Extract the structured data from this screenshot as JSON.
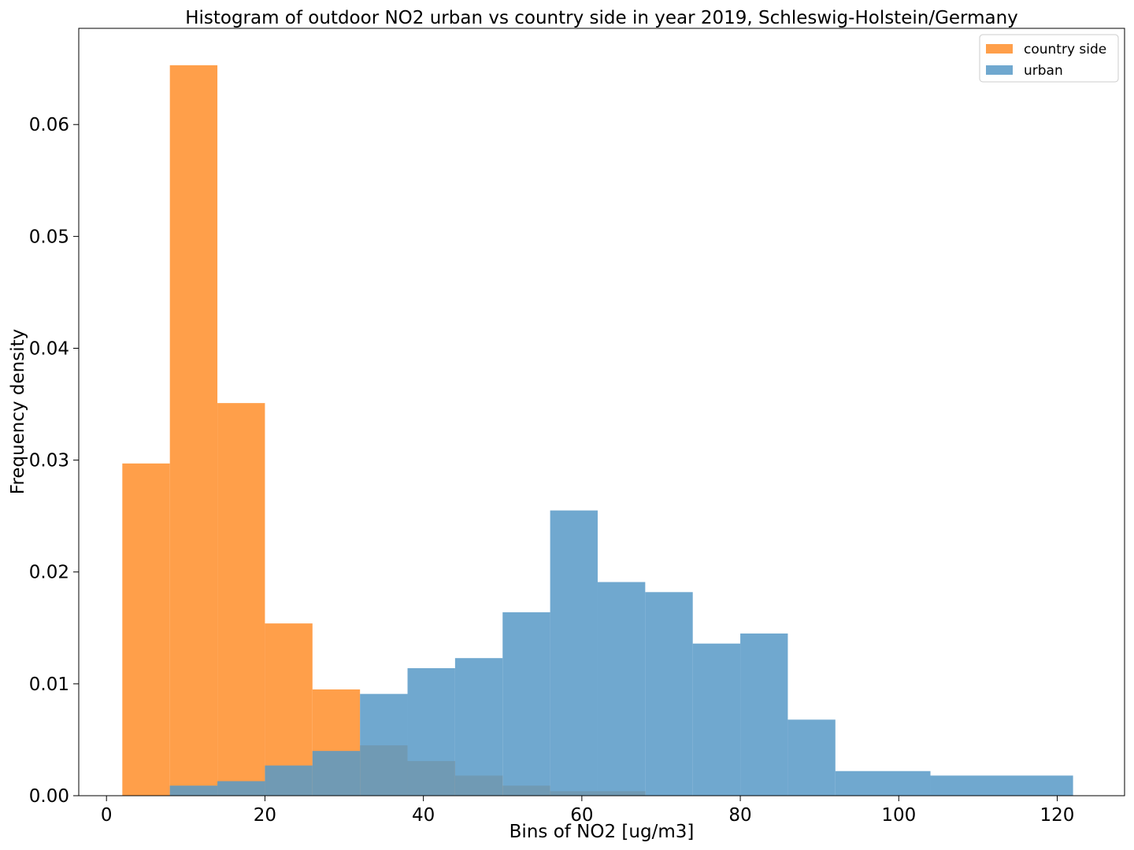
{
  "chart_data": {
    "type": "histogram",
    "title": "Histogram of outdoor NO2 urban vs country side in year 2019, Schleswig-Holstein/Germany",
    "xlabel": "Bins of NO2 [ug/m3]",
    "ylabel": "Frequency density",
    "xlim": [
      -3.5,
      128.5
    ],
    "ylim": [
      0,
      0.0686
    ],
    "xticks": [
      0,
      20,
      40,
      60,
      80,
      100,
      120
    ],
    "yticks": [
      0.0,
      0.01,
      0.02,
      0.03,
      0.04,
      0.05,
      0.06
    ],
    "ytick_labels": [
      "0.00",
      "0.01",
      "0.02",
      "0.03",
      "0.04",
      "0.05",
      "0.06"
    ],
    "grid": false,
    "legend_position": "top-right",
    "series": [
      {
        "name": "country side",
        "color": "#ff9f4a",
        "bins": [
          {
            "x0": 2,
            "x1": 8,
            "density": 0.0297
          },
          {
            "x0": 8,
            "x1": 14,
            "density": 0.0653
          },
          {
            "x0": 14,
            "x1": 20,
            "density": 0.0351
          },
          {
            "x0": 20,
            "x1": 26,
            "density": 0.0154
          },
          {
            "x0": 26,
            "x1": 32,
            "density": 0.0095
          },
          {
            "x0": 32,
            "x1": 38,
            "density": 0.0045
          },
          {
            "x0": 38,
            "x1": 44,
            "density": 0.0031
          },
          {
            "x0": 44,
            "x1": 50,
            "density": 0.0018
          },
          {
            "x0": 50,
            "x1": 56,
            "density": 0.0009
          },
          {
            "x0": 56,
            "x1": 62,
            "density": 0.0004
          },
          {
            "x0": 62,
            "x1": 68,
            "density": 0.0004
          }
        ]
      },
      {
        "name": "urban",
        "color": "#5799c7",
        "bins": [
          {
            "x0": 8,
            "x1": 14,
            "density": 0.0009
          },
          {
            "x0": 14,
            "x1": 20,
            "density": 0.0013
          },
          {
            "x0": 20,
            "x1": 26,
            "density": 0.0027
          },
          {
            "x0": 26,
            "x1": 32,
            "density": 0.004
          },
          {
            "x0": 32,
            "x1": 38,
            "density": 0.0091
          },
          {
            "x0": 38,
            "x1": 44,
            "density": 0.0114
          },
          {
            "x0": 44,
            "x1": 50,
            "density": 0.0123
          },
          {
            "x0": 50,
            "x1": 56,
            "density": 0.0164
          },
          {
            "x0": 56,
            "x1": 62,
            "density": 0.0255
          },
          {
            "x0": 62,
            "x1": 68,
            "density": 0.0191
          },
          {
            "x0": 68,
            "x1": 74,
            "density": 0.0182
          },
          {
            "x0": 74,
            "x1": 80,
            "density": 0.0136
          },
          {
            "x0": 80,
            "x1": 86,
            "density": 0.0145
          },
          {
            "x0": 86,
            "x1": 92,
            "density": 0.0068
          },
          {
            "x0": 92,
            "x1": 104,
            "density": 0.0022
          },
          {
            "x0": 104,
            "x1": 122,
            "density": 0.0018
          }
        ]
      }
    ]
  }
}
